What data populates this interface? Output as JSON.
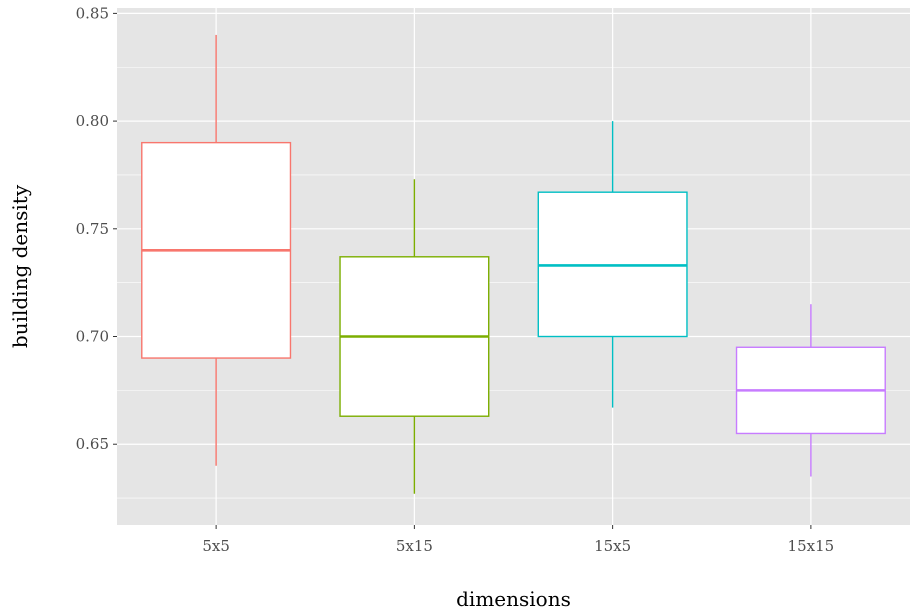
{
  "chart_data": {
    "type": "boxplot",
    "xlabel": "dimensions",
    "ylabel": "building density",
    "categories": [
      "5x5",
      "5x15",
      "15x5",
      "15x15"
    ],
    "boxes": [
      {
        "category": "5x5",
        "min": 0.64,
        "q1": 0.69,
        "median": 0.74,
        "q3": 0.79,
        "max": 0.84,
        "color": "#F8766D"
      },
      {
        "category": "5x15",
        "min": 0.627,
        "q1": 0.663,
        "median": 0.7,
        "q3": 0.737,
        "max": 0.773,
        "color": "#7CAE00"
      },
      {
        "category": "15x5",
        "min": 0.667,
        "q1": 0.7,
        "median": 0.733,
        "q3": 0.767,
        "max": 0.8,
        "color": "#00BFC4"
      },
      {
        "category": "15x15",
        "min": 0.635,
        "q1": 0.655,
        "median": 0.675,
        "q3": 0.695,
        "max": 0.715,
        "color": "#C77CFF"
      }
    ],
    "yticks": [
      0.65,
      0.7,
      0.75,
      0.8,
      0.85
    ],
    "ytick_labels": [
      "0.65",
      "0.70",
      "0.75",
      "0.80",
      "0.85"
    ],
    "ylim": [
      0.6125,
      0.8525
    ],
    "grid": true,
    "panel_background": "#E5E5E5",
    "grid_color": "#FFFFFF"
  }
}
